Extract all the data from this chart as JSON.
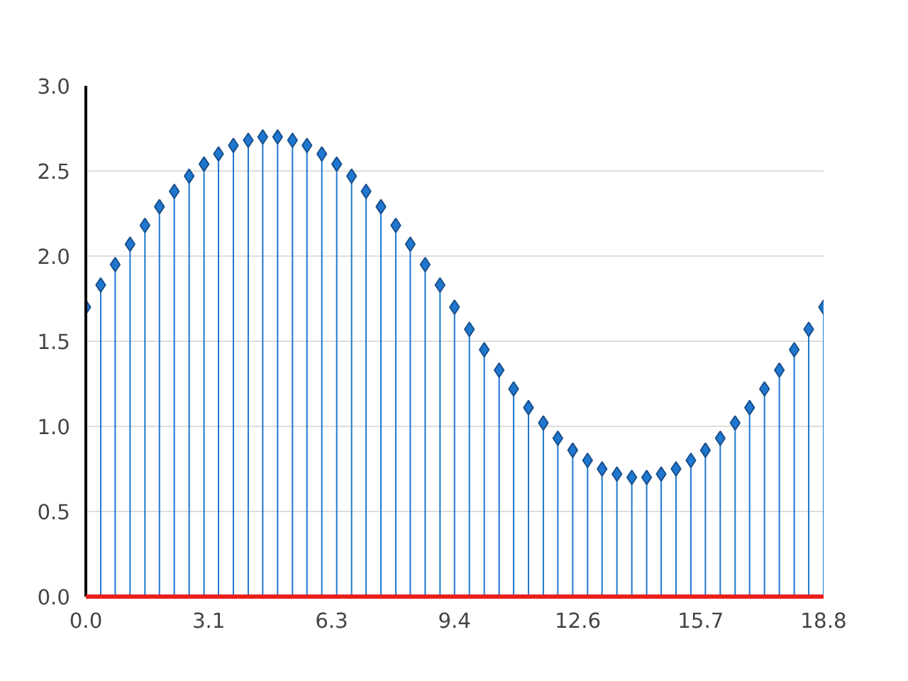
{
  "chart_data": {
    "type": "lollipop",
    "x": [
      0,
      0.38,
      0.75,
      1.13,
      1.51,
      1.88,
      2.26,
      2.64,
      3.02,
      3.39,
      3.77,
      4.15,
      4.52,
      4.9,
      5.28,
      5.65,
      6.03,
      6.41,
      6.79,
      7.16,
      7.54,
      7.92,
      8.29,
      8.67,
      9.05,
      9.42,
      9.8,
      10.18,
      10.56,
      10.93,
      11.31,
      11.69,
      12.06,
      12.44,
      12.82,
      13.19,
      13.57,
      13.95,
      14.33,
      14.7,
      15.08,
      15.46,
      15.83,
      16.21,
      16.59,
      16.96,
      17.34,
      17.72,
      18.1,
      18.47,
      18.85
    ],
    "series": [
      {
        "color": "#1f77d0",
        "values": [
          1.7,
          1.83,
          1.95,
          2.07,
          2.18,
          2.29,
          2.38,
          2.47,
          2.54,
          2.6,
          2.65,
          2.68,
          2.7,
          2.7,
          2.68,
          2.65,
          2.6,
          2.54,
          2.47,
          2.38,
          2.29,
          2.18,
          2.07,
          1.95,
          1.83,
          1.7,
          1.57,
          1.45,
          1.33,
          1.22,
          1.11,
          1.02,
          0.93,
          0.86,
          0.8,
          0.75,
          0.72,
          0.7,
          0.7,
          0.72,
          0.75,
          0.8,
          0.86,
          0.93,
          1.02,
          1.11,
          1.22,
          1.33,
          1.45,
          1.57,
          1.7
        ]
      }
    ],
    "xlim": [
      0,
      18.85
    ],
    "ylim": [
      0,
      3
    ],
    "xticks": [
      {
        "value": 0,
        "label": "0.0"
      },
      {
        "value": 3.14,
        "label": "3.1"
      },
      {
        "value": 6.28,
        "label": "6.3"
      },
      {
        "value": 9.42,
        "label": "9.4"
      },
      {
        "value": 12.57,
        "label": "12.6"
      },
      {
        "value": 15.71,
        "label": "15.7"
      },
      {
        "value": 18.85,
        "label": "18.8"
      }
    ],
    "yticks": [
      {
        "value": 0,
        "label": "0.0"
      },
      {
        "value": 0.5,
        "label": "0.5"
      },
      {
        "value": 1,
        "label": "1.0"
      },
      {
        "value": 1.5,
        "label": "1.5"
      },
      {
        "value": 2,
        "label": "2.0"
      },
      {
        "value": 2.5,
        "label": "2.5"
      },
      {
        "value": 3,
        "label": "3.0"
      }
    ],
    "grid": "y",
    "marker": "diamond"
  }
}
